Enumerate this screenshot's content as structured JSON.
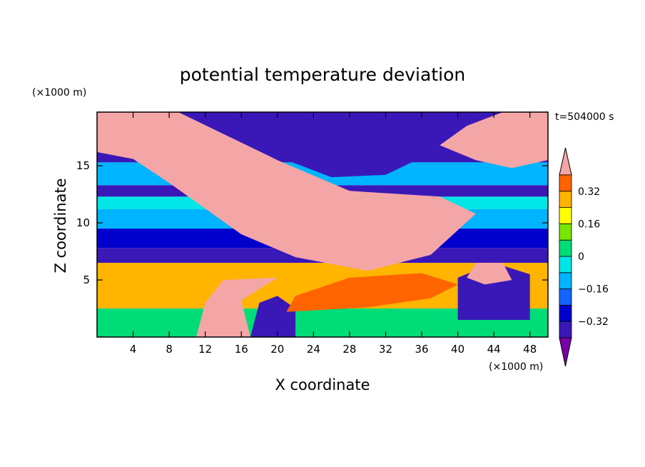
{
  "chart_data": {
    "type": "heatmap",
    "title": "potential temperature deviation",
    "xlabel": "X coordinate",
    "ylabel": "Z coordinate",
    "x_unit": "(×1000 m)",
    "y_unit": "(×1000 m)",
    "time_label": "t=504000 s",
    "xlim": [
      0,
      50
    ],
    "ylim": [
      0,
      19.7
    ],
    "x_ticks": [
      4,
      8,
      12,
      16,
      20,
      24,
      28,
      32,
      36,
      40,
      44,
      48
    ],
    "y_ticks": [
      5,
      10,
      15
    ],
    "colorbar": {
      "levels": [
        -0.4,
        -0.32,
        -0.24,
        -0.16,
        -0.08,
        0,
        0.08,
        0.16,
        0.24,
        0.32,
        0.4
      ],
      "labeled_levels": [
        0.32,
        0.16,
        0,
        -0.16,
        -0.32
      ],
      "colors": [
        "#7a00a8",
        "#3a18b8",
        "#0000cc",
        "#1464ff",
        "#00b4ff",
        "#00e6e6",
        "#00dc78",
        "#78e600",
        "#ffff00",
        "#ffb400",
        "#ff6400",
        "#f01e1e",
        "#f4a6a6"
      ],
      "extend": "both"
    },
    "bands": [
      {
        "z": [
          0,
          2.5
        ],
        "level": 0
      },
      {
        "z": [
          2.5,
          6.5
        ],
        "level": 0.24
      },
      {
        "z": [
          6.5,
          7.8
        ],
        "level": -0.4
      },
      {
        "z": [
          7.8,
          9.5
        ],
        "level": -0.32
      },
      {
        "z": [
          9.5,
          11.2
        ],
        "level": -0.16
      },
      {
        "z": [
          11.2,
          12.3
        ],
        "level": -0.08
      },
      {
        "z": [
          12.3,
          13.3
        ],
        "level": -0.4
      },
      {
        "z": [
          13.3,
          15.3
        ],
        "level": -0.16
      },
      {
        "z": [
          15.3,
          19.7
        ],
        "level": -0.4
      }
    ],
    "anomalies": [
      {
        "label": "warm diagonal tongue",
        "polygon": [
          [
            0,
            19.7
          ],
          [
            9,
            19.7
          ],
          [
            20,
            15.5
          ],
          [
            28,
            12.8
          ],
          [
            38,
            12.3
          ],
          [
            42,
            10.8
          ],
          [
            37,
            7.2
          ],
          [
            30,
            5.8
          ],
          [
            22,
            7.0
          ],
          [
            16,
            9.0
          ],
          [
            8,
            13.5
          ],
          [
            4,
            15.6
          ],
          [
            0,
            16.2
          ]
        ],
        "level": 0.4
      },
      {
        "label": "upper right warm patch",
        "polygon": [
          [
            45,
            19.7
          ],
          [
            50,
            19.7
          ],
          [
            50,
            15.5
          ],
          [
            46,
            14.8
          ],
          [
            42,
            15.5
          ],
          [
            38,
            16.8
          ],
          [
            41,
            18.5
          ]
        ],
        "level": 0.4
      },
      {
        "label": "upper cold pocket",
        "polygon": [
          [
            15,
            19.7
          ],
          [
            38,
            19.7
          ],
          [
            38,
            16.5
          ],
          [
            32,
            14.2
          ],
          [
            26,
            14.0
          ],
          [
            20,
            15.8
          ]
        ],
        "level": -0.4
      },
      {
        "label": "low warm plume",
        "polygon": [
          [
            11,
            0
          ],
          [
            17,
            0
          ],
          [
            16,
            3.2
          ],
          [
            20,
            5.2
          ],
          [
            14,
            5.0
          ],
          [
            12,
            3.0
          ]
        ],
        "level": 0.4
      },
      {
        "label": "low cold cell",
        "polygon": [
          [
            17,
            0
          ],
          [
            22,
            0
          ],
          [
            22,
            2.5
          ],
          [
            20,
            3.6
          ],
          [
            18,
            3.0
          ]
        ],
        "level": -0.4
      },
      {
        "label": "right cold cell",
        "polygon": [
          [
            40,
            1.5
          ],
          [
            48,
            1.5
          ],
          [
            48,
            5.5
          ],
          [
            44,
            6.5
          ],
          [
            40,
            5.2
          ]
        ],
        "level": -0.4
      },
      {
        "label": "warm tongue right",
        "polygon": [
          [
            42,
            6.5
          ],
          [
            45,
            6.5
          ],
          [
            46,
            5.0
          ],
          [
            43,
            4.6
          ],
          [
            41,
            5.2
          ]
        ],
        "level": 0.4
      },
      {
        "label": "orange ridge",
        "polygon": [
          [
            21,
            2.2
          ],
          [
            30,
            2.6
          ],
          [
            37,
            3.4
          ],
          [
            40,
            4.6
          ],
          [
            36,
            5.6
          ],
          [
            28,
            5.2
          ],
          [
            22,
            3.6
          ]
        ],
        "level": 0.32
      }
    ]
  }
}
